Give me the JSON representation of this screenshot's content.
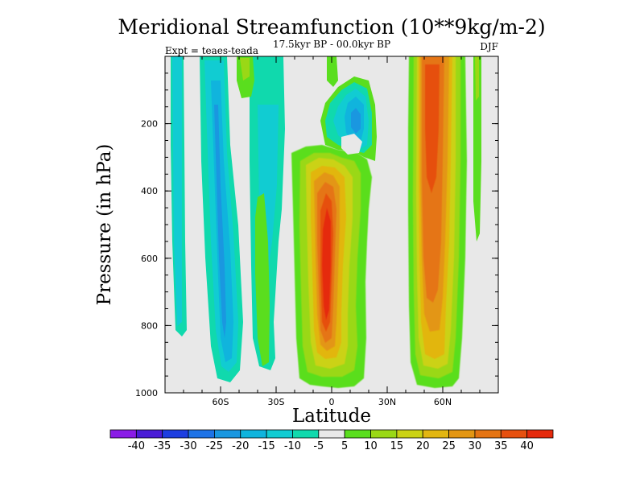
{
  "chart_data": {
    "type": "heatmap",
    "title": "Meridional Streamfunction (10**9kg/m-2)",
    "subtitle": "17.5kyr BP - 00.0kyr BP",
    "left_label": "Expt = teaes-teada",
    "right_label": "DJF",
    "xlabel": "Latitude",
    "ylabel": "Pressure (in hPa)",
    "xlim": [
      -90,
      90
    ],
    "ylim": [
      1000,
      0
    ],
    "xticks": [
      {
        "value": -60,
        "label": "60S"
      },
      {
        "value": -30,
        "label": "30S"
      },
      {
        "value": 0,
        "label": "0"
      },
      {
        "value": 30,
        "label": "30N"
      },
      {
        "value": 60,
        "label": "60N"
      }
    ],
    "yticks": [
      {
        "value": 200,
        "label": "200"
      },
      {
        "value": 400,
        "label": "400"
      },
      {
        "value": 600,
        "label": "600"
      },
      {
        "value": 800,
        "label": "800"
      },
      {
        "value": 1000,
        "label": "1000"
      }
    ],
    "colorbar": {
      "levels": [
        -40,
        -35,
        -30,
        -25,
        -20,
        -15,
        -10,
        -5,
        5,
        10,
        15,
        20,
        25,
        30,
        35,
        40
      ],
      "labels": [
        "-40",
        "-35",
        "-30",
        "-25",
        "-20",
        "-15",
        "-10",
        "-5",
        "5",
        "10",
        "15",
        "20",
        "25",
        "30",
        "35",
        "40"
      ],
      "colors": [
        "#8a1ce6",
        "#4a1cd6",
        "#1d3ee0",
        "#1e73e6",
        "#1a97e0",
        "#10b4dd",
        "#11ccd2",
        "#10d9ad",
        "#e8e8e8",
        "#5ade1e",
        "#9ad816",
        "#cbd214",
        "#e2b611",
        "#e39612",
        "#e57412",
        "#e6500f",
        "#e52a0c"
      ]
    },
    "features": [
      {
        "name": "sh-polar-cell",
        "lat_range": [
          -84,
          -80
        ],
        "p_range": [
          0,
          800
        ],
        "value": -7
      },
      {
        "name": "sh-high-lat-cell",
        "lat_range": [
          -70,
          -57
        ],
        "p_range": [
          0,
          960
        ],
        "value": -12
      },
      {
        "name": "sh-midlat-positive-upper",
        "lat_range": [
          -47,
          -42
        ],
        "p_range": [
          0,
          120
        ],
        "value": 8
      },
      {
        "name": "sh-midlat-negative",
        "lat_range": [
          -51,
          -39
        ],
        "p_range": [
          0,
          970
        ],
        "value": -8
      },
      {
        "name": "sh-midlat-positive-lower",
        "lat_range": [
          -41,
          -37
        ],
        "p_range": [
          350,
          900
        ],
        "value": 7
      },
      {
        "name": "tropical-positive-cell",
        "lat_range": [
          -16,
          20
        ],
        "p_range": [
          280,
          1000
        ],
        "value": 36
      },
      {
        "name": "upper-tropical-negative",
        "lat_range": [
          2,
          20
        ],
        "p_range": [
          50,
          260
        ],
        "value": -14
      },
      {
        "name": "nh-positive-cell",
        "lat_range": [
          45,
          70
        ],
        "p_range": [
          0,
          990
        ],
        "value": 33
      },
      {
        "name": "nh-polar-positive",
        "lat_range": [
          76,
          80
        ],
        "p_range": [
          0,
          500
        ],
        "value": 7
      }
    ]
  }
}
